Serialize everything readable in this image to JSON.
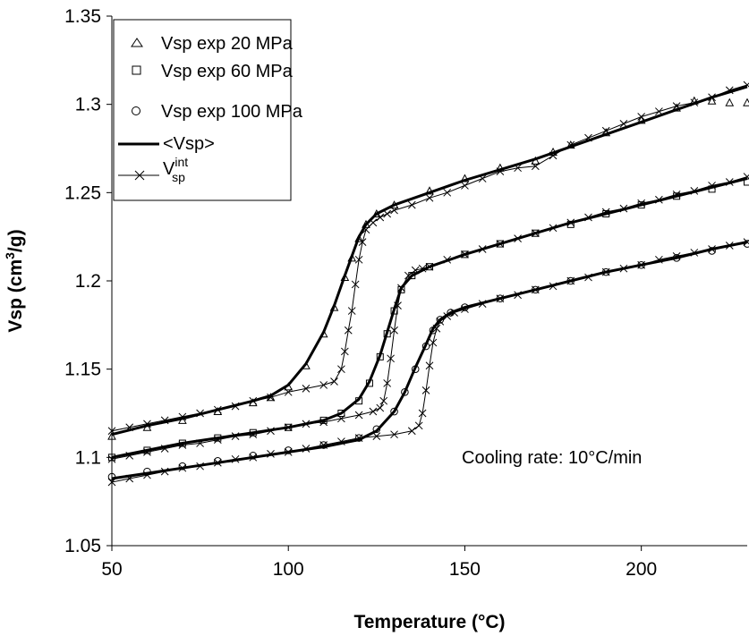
{
  "chart_data": {
    "type": "scatter",
    "xlabel": "Temperature (°C)",
    "ylabel_main": "Vsp (cm",
    "ylabel_sup": "3",
    "ylabel_tail": "/g)",
    "xlim": [
      50,
      230
    ],
    "ylim": [
      1.05,
      1.35
    ],
    "xticks": [
      50,
      100,
      150,
      200
    ],
    "yticks": [
      1.05,
      1.1,
      1.15,
      1.2,
      1.25,
      1.3,
      1.35
    ],
    "ytick_labels": [
      "1.05",
      "1.1",
      "1.15",
      "1.2",
      "1.25",
      "1.3",
      "1.35"
    ],
    "xtick_labels": [
      "50",
      "100",
      "150",
      "200"
    ],
    "annotation": "Cooling rate: 10°C/min",
    "legend_position": "top-left",
    "legend": [
      {
        "label": "Vsp exp 20 MPa",
        "marker": "triangle"
      },
      {
        "label": "Vsp exp 60 MPa",
        "marker": "square"
      },
      {
        "label": "Vsp exp 100 MPa",
        "marker": "circle"
      },
      {
        "label": "<Vsp>",
        "marker": "line"
      },
      {
        "label_base": "V",
        "label_sup": "int",
        "label_sub": "sp",
        "marker": "line-x"
      }
    ],
    "series": [
      {
        "name": "Vsp exp 20 MPa",
        "marker": "triangle",
        "pressure_mpa": 20,
        "x": [
          50,
          60,
          70,
          80,
          90,
          95,
          100,
          105,
          110,
          113,
          116,
          118,
          120,
          122,
          125,
          130,
          140,
          150,
          160,
          170,
          175,
          180,
          190,
          200,
          210,
          215,
          220,
          225,
          230
        ],
        "y": [
          1.112,
          1.117,
          1.121,
          1.126,
          1.131,
          1.134,
          1.14,
          1.152,
          1.17,
          1.185,
          1.202,
          1.213,
          1.224,
          1.232,
          1.238,
          1.243,
          1.251,
          1.258,
          1.264,
          1.268,
          1.273,
          1.277,
          1.284,
          1.291,
          1.298,
          1.302,
          1.302,
          1.301,
          1.301
        ]
      },
      {
        "name": "Vsp exp 60 MPa",
        "marker": "square",
        "pressure_mpa": 60,
        "x": [
          50,
          60,
          70,
          80,
          90,
          100,
          110,
          115,
          120,
          123,
          126,
          128,
          130,
          132,
          135,
          140,
          150,
          160,
          170,
          180,
          190,
          200,
          210,
          220,
          230
        ],
        "y": [
          1.1,
          1.104,
          1.108,
          1.111,
          1.114,
          1.117,
          1.121,
          1.125,
          1.132,
          1.142,
          1.157,
          1.17,
          1.183,
          1.195,
          1.203,
          1.208,
          1.215,
          1.221,
          1.227,
          1.232,
          1.238,
          1.243,
          1.248,
          1.252,
          1.256
        ]
      },
      {
        "name": "Vsp exp 100 MPa",
        "marker": "circle",
        "pressure_mpa": 100,
        "x": [
          50,
          60,
          70,
          80,
          90,
          100,
          110,
          120,
          125,
          130,
          133,
          136,
          139,
          141,
          143,
          146,
          150,
          160,
          170,
          180,
          190,
          200,
          210,
          220,
          230
        ],
        "y": [
          1.089,
          1.092,
          1.095,
          1.098,
          1.101,
          1.104,
          1.107,
          1.111,
          1.116,
          1.126,
          1.137,
          1.15,
          1.163,
          1.172,
          1.178,
          1.182,
          1.185,
          1.19,
          1.195,
          1.2,
          1.205,
          1.209,
          1.213,
          1.217,
          1.221
        ]
      },
      {
        "name": "<Vsp>",
        "marker": "none",
        "pressure_mpa": 20,
        "x": [
          50,
          60,
          70,
          80,
          90,
          95,
          100,
          105,
          110,
          113,
          116,
          118,
          120,
          122,
          125,
          130,
          140,
          150,
          160,
          170,
          180,
          190,
          200,
          210,
          220,
          230
        ],
        "y": [
          1.113,
          1.118,
          1.122,
          1.127,
          1.132,
          1.135,
          1.141,
          1.153,
          1.171,
          1.186,
          1.203,
          1.214,
          1.225,
          1.232,
          1.238,
          1.243,
          1.25,
          1.257,
          1.263,
          1.269,
          1.276,
          1.283,
          1.29,
          1.297,
          1.304,
          1.31
        ]
      },
      {
        "name": "<Vsp>",
        "marker": "none",
        "pressure_mpa": 60,
        "x": [
          50,
          60,
          70,
          80,
          90,
          100,
          110,
          115,
          120,
          123,
          126,
          128,
          130,
          132,
          135,
          140,
          150,
          160,
          170,
          180,
          190,
          200,
          210,
          220,
          230
        ],
        "y": [
          1.1,
          1.104,
          1.108,
          1.111,
          1.114,
          1.117,
          1.121,
          1.125,
          1.133,
          1.143,
          1.158,
          1.171,
          1.184,
          1.196,
          1.203,
          1.208,
          1.215,
          1.221,
          1.227,
          1.233,
          1.238,
          1.243,
          1.248,
          1.253,
          1.258
        ]
      },
      {
        "name": "<Vsp>",
        "marker": "none",
        "pressure_mpa": 100,
        "x": [
          50,
          60,
          70,
          80,
          90,
          100,
          110,
          120,
          125,
          130,
          133,
          136,
          139,
          141,
          143,
          146,
          150,
          160,
          170,
          180,
          190,
          200,
          210,
          220,
          230
        ],
        "y": [
          1.088,
          1.091,
          1.094,
          1.097,
          1.1,
          1.103,
          1.106,
          1.11,
          1.115,
          1.126,
          1.137,
          1.151,
          1.164,
          1.173,
          1.178,
          1.182,
          1.185,
          1.19,
          1.195,
          1.2,
          1.205,
          1.209,
          1.213,
          1.218,
          1.222
        ]
      },
      {
        "name": "V_sp^int",
        "marker": "x",
        "pressure_mpa": 20,
        "x": [
          50,
          55,
          60,
          65,
          70,
          75,
          80,
          85,
          90,
          95,
          100,
          105,
          110,
          113,
          115,
          116,
          117,
          118,
          119,
          120,
          121,
          122,
          124,
          126,
          128,
          130,
          135,
          140,
          145,
          150,
          155,
          160,
          165,
          170,
          175,
          180,
          185,
          190,
          195,
          200,
          205,
          210,
          215,
          220,
          225,
          230
        ],
        "y": [
          1.115,
          1.117,
          1.119,
          1.121,
          1.123,
          1.125,
          1.127,
          1.129,
          1.132,
          1.134,
          1.137,
          1.139,
          1.141,
          1.143,
          1.15,
          1.16,
          1.172,
          1.183,
          1.198,
          1.212,
          1.222,
          1.229,
          1.233,
          1.236,
          1.238,
          1.24,
          1.243,
          1.247,
          1.25,
          1.254,
          1.258,
          1.262,
          1.264,
          1.265,
          1.271,
          1.277,
          1.281,
          1.285,
          1.289,
          1.293,
          1.296,
          1.299,
          1.301,
          1.304,
          1.308,
          1.311
        ]
      },
      {
        "name": "V_sp^int",
        "marker": "x",
        "pressure_mpa": 60,
        "x": [
          50,
          55,
          60,
          65,
          70,
          75,
          80,
          85,
          90,
          95,
          100,
          105,
          110,
          115,
          120,
          124,
          126,
          127,
          128,
          129,
          130,
          131,
          132,
          134,
          136,
          138,
          140,
          145,
          150,
          155,
          160,
          165,
          170,
          175,
          180,
          185,
          190,
          195,
          200,
          205,
          210,
          215,
          220,
          225,
          230
        ],
        "y": [
          1.099,
          1.101,
          1.103,
          1.105,
          1.107,
          1.108,
          1.11,
          1.112,
          1.113,
          1.115,
          1.117,
          1.119,
          1.12,
          1.122,
          1.124,
          1.126,
          1.128,
          1.132,
          1.142,
          1.156,
          1.172,
          1.186,
          1.196,
          1.203,
          1.206,
          1.207,
          1.208,
          1.212,
          1.215,
          1.218,
          1.221,
          1.224,
          1.227,
          1.23,
          1.233,
          1.236,
          1.239,
          1.241,
          1.244,
          1.246,
          1.249,
          1.251,
          1.254,
          1.256,
          1.259
        ]
      },
      {
        "name": "V_sp^int",
        "marker": "x",
        "pressure_mpa": 100,
        "x": [
          50,
          55,
          60,
          65,
          70,
          75,
          80,
          85,
          90,
          95,
          100,
          105,
          110,
          115,
          120,
          125,
          130,
          135,
          137,
          138,
          139,
          140,
          141,
          142,
          143,
          145,
          147,
          150,
          155,
          160,
          165,
          170,
          175,
          180,
          185,
          190,
          195,
          200,
          205,
          210,
          215,
          220,
          225,
          230
        ],
        "y": [
          1.086,
          1.088,
          1.09,
          1.092,
          1.094,
          1.095,
          1.097,
          1.099,
          1.1,
          1.102,
          1.103,
          1.105,
          1.107,
          1.109,
          1.111,
          1.112,
          1.113,
          1.115,
          1.118,
          1.125,
          1.138,
          1.152,
          1.165,
          1.173,
          1.177,
          1.18,
          1.182,
          1.184,
          1.187,
          1.19,
          1.192,
          1.195,
          1.197,
          1.2,
          1.202,
          1.205,
          1.207,
          1.209,
          1.212,
          1.214,
          1.216,
          1.218,
          1.22,
          1.222
        ]
      }
    ]
  }
}
